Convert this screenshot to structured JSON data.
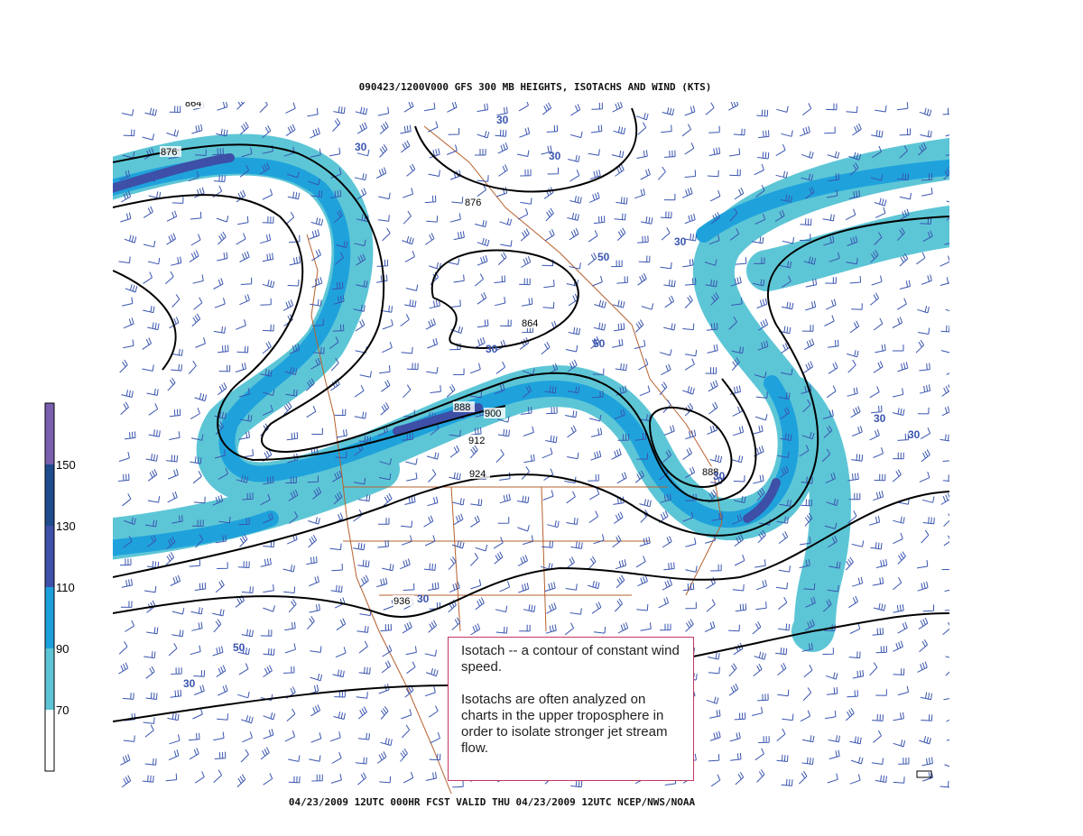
{
  "header": {
    "title": "090423/1200V000 GFS 300 MB  HEIGHTS, ISOTACHS AND WIND (KTS)"
  },
  "footer": {
    "text": "04/23/2009 12UTC 000HR FCST VALID THU 04/23/2009 12UTC  NCEP/NWS/NOAA"
  },
  "legend": {
    "labels": [
      "150",
      "130",
      "110",
      "90",
      "70"
    ]
  },
  "height_labels": [
    "864",
    "876",
    "876",
    "864",
    "888",
    "900",
    "912",
    "924",
    "936",
    "888"
  ],
  "isotach_labels": [
    "30",
    "30",
    "30",
    "50",
    "30",
    "50",
    "30",
    "30",
    "30",
    "50",
    "30",
    "30",
    "30"
  ],
  "annotation": {
    "paragraphs": [
      "Isotach -- a contour of constant wind speed.",
      "Isotachs are often analyzed on charts in the upper troposphere in order to isolate stronger jet stream flow."
    ]
  }
}
